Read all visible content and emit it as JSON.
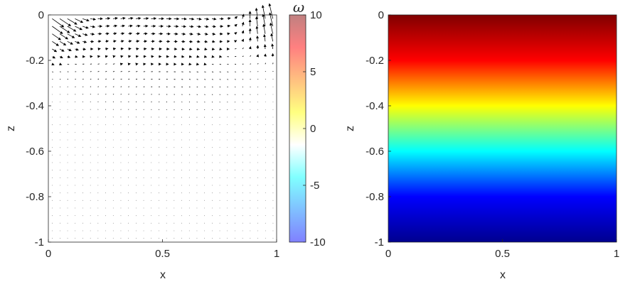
{
  "chart_data": [
    {
      "type": "quiver",
      "xlabel": "x",
      "ylabel": "z",
      "xlim": [
        0,
        1
      ],
      "ylim": [
        -1,
        0
      ],
      "x_ticks": [
        "0",
        "0.5",
        "1"
      ],
      "y_ticks": [
        "0",
        "-0.2",
        "-0.4",
        "-0.6",
        "-0.8",
        "-1"
      ],
      "colorbar": {
        "label": "ω",
        "limits": [
          -10,
          10
        ],
        "ticks": [
          "10",
          "5",
          "0",
          "-5",
          "-10"
        ],
        "colors": [
          "#8080ff",
          "#80c0ff",
          "#80ffff",
          "#ffffff",
          "#ffff80",
          "#ffc080",
          "#ff8080",
          "#c08080"
        ]
      },
      "grid": "off"
    },
    {
      "type": "heatmap",
      "xlabel": "x",
      "ylabel": "z",
      "xlim": [
        0,
        1
      ],
      "ylim": [
        -1,
        0
      ],
      "x_ticks": [
        "0",
        "0.5",
        "1"
      ],
      "y_ticks": [
        "0",
        "-0.2",
        "-0.4",
        "-0.6",
        "-0.8",
        "-1"
      ],
      "colormap": [
        "#00008f",
        "#0000ff",
        "#00ffff",
        "#ffff00",
        "#ff0000",
        "#800000"
      ],
      "field": "linear in z, maximum at z=0, minimum at z=-1",
      "grid": "off"
    }
  ]
}
